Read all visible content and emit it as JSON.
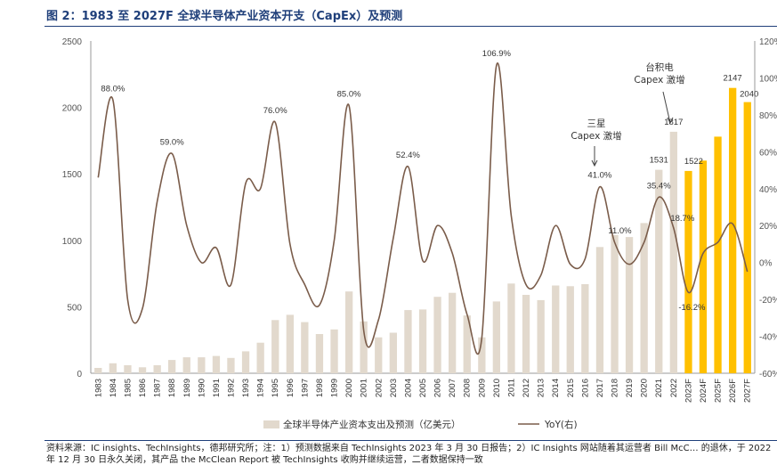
{
  "figure_title": "图 2：1983 至 2027F 全球半导体产业资本开支（CapEx）及预测",
  "source_note": "资料来源：IC insights、TechInsights，德邦研究所；注：1）预测数据来自 TechInsights 2023 年 3 月 30 日报告；2）IC Insights 网站随着其运营者 Bill McC… 的退休，于 2022 年 12 月 30 日永久关闭，其产品 the McClean Report 被 TechInsights 收购并继续运营，二者数据保持一致",
  "colors": {
    "bar_actual": "#e2d9cd",
    "bar_forecast": "#ffc000",
    "line": "#7a5c4a",
    "title": "#1f3f7a"
  },
  "chart_data": {
    "type": "bar",
    "categories": [
      "1983",
      "1984",
      "1985",
      "1986",
      "1987",
      "1988",
      "1989",
      "1990",
      "1991",
      "1992",
      "1993",
      "1994",
      "1995",
      "1996",
      "1997",
      "1998",
      "1999",
      "2000",
      "2001",
      "2002",
      "2003",
      "2004",
      "2005",
      "2006",
      "2007",
      "2008",
      "2009",
      "2010",
      "2011",
      "2012",
      "2013",
      "2014",
      "2015",
      "2016",
      "2017",
      "2018",
      "2019",
      "2020",
      "2021",
      "2022",
      "2023F",
      "2024F",
      "2025F",
      "2026F",
      "2027F"
    ],
    "series": [
      {
        "name": "全球半导体产业资本支出及预测（亿美元）",
        "kind": "bar",
        "axis": "left",
        "values": [
          40,
          75,
          60,
          45,
          60,
          100,
          120,
          120,
          130,
          115,
          165,
          230,
          400,
          440,
          385,
          295,
          330,
          615,
          390,
          270,
          305,
          475,
          480,
          575,
          605,
          435,
          270,
          540,
          675,
          590,
          550,
          660,
          655,
          670,
          950,
          1040,
          1025,
          1130,
          1531,
          1817,
          1522,
          1600,
          1780,
          2147,
          2040
        ],
        "forecast_from": "2023F"
      },
      {
        "name": "YoY(右)",
        "kind": "line",
        "axis": "right",
        "unit": "%",
        "values": [
          46,
          88,
          -20,
          -25,
          33,
          59,
          20,
          0,
          8,
          -12,
          43,
          40,
          76,
          10,
          -12,
          -23,
          12,
          85,
          -37,
          -31,
          13,
          52,
          1,
          20,
          5,
          -28,
          -41,
          106.9,
          25,
          -12,
          -7,
          20,
          -1,
          2,
          41,
          11,
          -1,
          11,
          35.4,
          18.7,
          -16.2,
          5,
          11,
          21,
          -5
        ]
      }
    ],
    "data_labels": [
      {
        "category": "1984",
        "text": "88.0%"
      },
      {
        "category": "1988",
        "text": "59.0%"
      },
      {
        "category": "1995",
        "text": "76.0%"
      },
      {
        "category": "2000",
        "text": "85.0%"
      },
      {
        "category": "2004",
        "text": "52.4%"
      },
      {
        "category": "2010",
        "text": "106.9%"
      },
      {
        "category": "2017",
        "text": "41.0%"
      },
      {
        "category": "2018",
        "text": "11.0%"
      },
      {
        "category": "2021",
        "text": "1531"
      },
      {
        "category": "2021",
        "text": "35.4%"
      },
      {
        "category": "2022",
        "text": "1817"
      },
      {
        "category": "2022",
        "text": "18.7%"
      },
      {
        "category": "2023F",
        "text": "1522"
      },
      {
        "category": "2023F",
        "text": "-16.2%"
      },
      {
        "category": "2026F",
        "text": "2147"
      },
      {
        "category": "2027F",
        "text": "2040"
      }
    ],
    "annotations": [
      {
        "text": [
          "三星",
          "Capex 激增"
        ],
        "points_to": "2017"
      },
      {
        "text": [
          "台积电",
          "Capex 激增"
        ],
        "points_to": "2022"
      }
    ],
    "y_left": {
      "range": [
        0,
        2500
      ],
      "ticks": [
        0,
        500,
        1000,
        1500,
        2000,
        2500
      ]
    },
    "y_right": {
      "range": [
        -60,
        120
      ],
      "ticks": [
        "-60%",
        "-40%",
        "-20%",
        "0%",
        "20%",
        "40%",
        "60%",
        "80%",
        "100%",
        "120%"
      ]
    },
    "grid": false,
    "legend_position": "bottom",
    "legend": [
      "全球半导体产业资本支出及预测（亿美元）",
      "YoY(右)"
    ]
  }
}
